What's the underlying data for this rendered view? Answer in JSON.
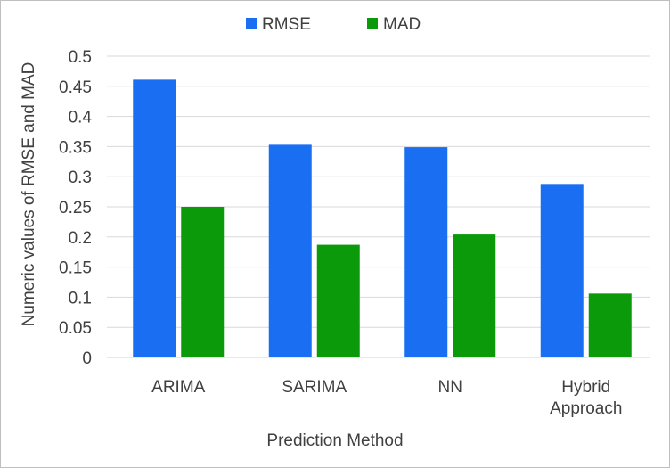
{
  "chart_data": {
    "type": "bar",
    "title": "",
    "xlabel": "Prediction Method",
    "ylabel": "Numeric values of RMSE and MAD",
    "categories": [
      "ARIMA",
      "SARIMA",
      "NN",
      "Hybrid Approach"
    ],
    "series": [
      {
        "name": "RMSE",
        "color": "#1a6ef2",
        "values": [
          0.461,
          0.353,
          0.349,
          0.288
        ]
      },
      {
        "name": "MAD",
        "color": "#0a9a0a",
        "values": [
          0.25,
          0.187,
          0.204,
          0.106
        ]
      }
    ],
    "ylim": [
      0,
      0.5
    ],
    "yticks": [
      "0",
      "0.05",
      "0.1",
      "0.15",
      "0.2",
      "0.25",
      "0.3",
      "0.35",
      "0.4",
      "0.45",
      "0.5"
    ],
    "grid": true,
    "legend_position": "top-center"
  }
}
